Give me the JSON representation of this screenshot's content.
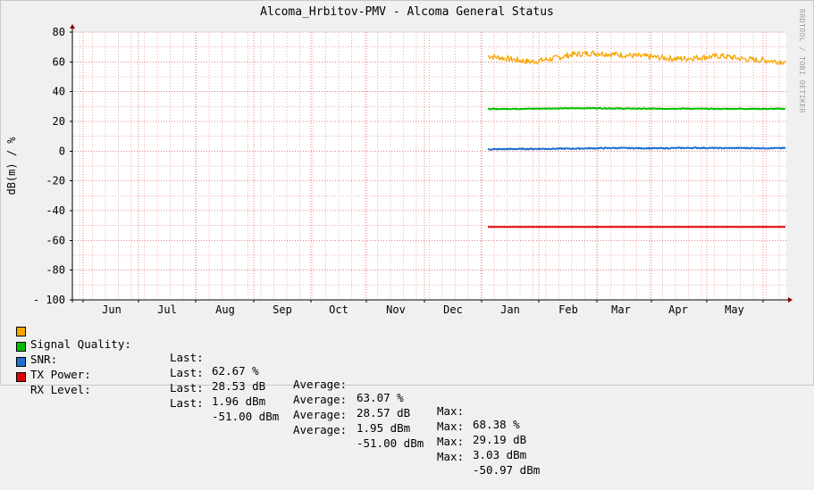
{
  "title": "Alcoma_Hrbitov-PMV - Alcoma General Status",
  "watermark": "RRDTOOL / TOBI OETIKER",
  "colors": {
    "signal_quality": "#f7a600",
    "snr": "#00c000",
    "tx_power": "#1f6fd0",
    "rx_level": "#e00000",
    "grid_minor": "#f0b0b0",
    "grid_major": "#e08080",
    "axis": "#000000",
    "arrow": "#8b0000"
  },
  "legend": [
    {
      "name": "Signal Quality:",
      "last_label": "Last:",
      "last": "62.67 %",
      "avg_label": "Average:",
      "avg": "63.07 %",
      "max_label": "Max:",
      "max": "68.38 %"
    },
    {
      "name": "SNR:",
      "last_label": "Last:",
      "last": "28.53 dB",
      "avg_label": "Average:",
      "avg": "28.57 dB",
      "max_label": "Max:",
      "max": "29.19 dB"
    },
    {
      "name": "TX Power:",
      "last_label": "Last:",
      "last": "1.96 dBm",
      "avg_label": "Average:",
      "avg": "1.95 dBm",
      "max_label": "Max:",
      "max": "3.03 dBm"
    },
    {
      "name": "RX Level:",
      "last_label": "Last:",
      "last": "-51.00 dBm",
      "avg_label": "Average:",
      "avg": "-51.00 dBm",
      "max_label": "Max:",
      "max": "-50.97 dBm"
    }
  ],
  "chart_data": {
    "type": "line",
    "title": "Alcoma_Hrbitov-PMV - Alcoma General Status",
    "xlabel": "",
    "ylabel": "dB(m) / %",
    "ylim": [
      -100,
      80
    ],
    "yticks": [
      80,
      60,
      40,
      20,
      0,
      -20,
      -40,
      -60,
      -80,
      -100
    ],
    "ytick_labels": [
      "80",
      "60",
      "40",
      "20",
      "0",
      "-20",
      "-40",
      "-60",
      "-80",
      "- 100"
    ],
    "x_categories": [
      "Jun",
      "Jul",
      "Aug",
      "Sep",
      "Oct",
      "Nov",
      "Dec",
      "Jan",
      "Feb",
      "Mar",
      "Apr",
      "May"
    ],
    "grid": true,
    "legend_position": "bottom-left",
    "series": [
      {
        "name": "Signal Quality",
        "key": "signal_quality",
        "start": "Jan",
        "last": 62.67,
        "average": 63.07,
        "max": 68.38,
        "noise": 2.0,
        "values": [
          64,
          62,
          60,
          62,
          65,
          66,
          65,
          64,
          63,
          62,
          63,
          64,
          62,
          61,
          60
        ]
      },
      {
        "name": "SNR",
        "key": "snr",
        "start": "Jan",
        "last": 28.53,
        "average": 28.57,
        "max": 29.19,
        "noise": 0.25,
        "values": [
          28.3,
          28.4,
          28.5,
          28.7,
          28.8,
          28.9,
          28.7,
          28.6,
          28.5,
          28.6,
          28.5,
          28.4,
          28.5,
          28.4,
          28.5
        ]
      },
      {
        "name": "TX Power",
        "key": "tx_power",
        "start": "Jan",
        "last": 1.96,
        "average": 1.95,
        "max": 3.03,
        "noise": 0.35,
        "values": [
          1.2,
          1.4,
          1.5,
          1.6,
          1.7,
          1.9,
          2.1,
          2.0,
          1.9,
          2.1,
          2.2,
          2.0,
          2.1,
          2.0,
          2.0
        ]
      },
      {
        "name": "RX Level",
        "key": "rx_level",
        "start": "Jan",
        "last": -51.0,
        "average": -51.0,
        "max": -50.97,
        "noise": 0,
        "values": [
          -51,
          -51,
          -51,
          -51,
          -51,
          -51,
          -51,
          -51,
          -51,
          -51,
          -51,
          -51,
          -51,
          -51,
          -51
        ]
      }
    ]
  }
}
